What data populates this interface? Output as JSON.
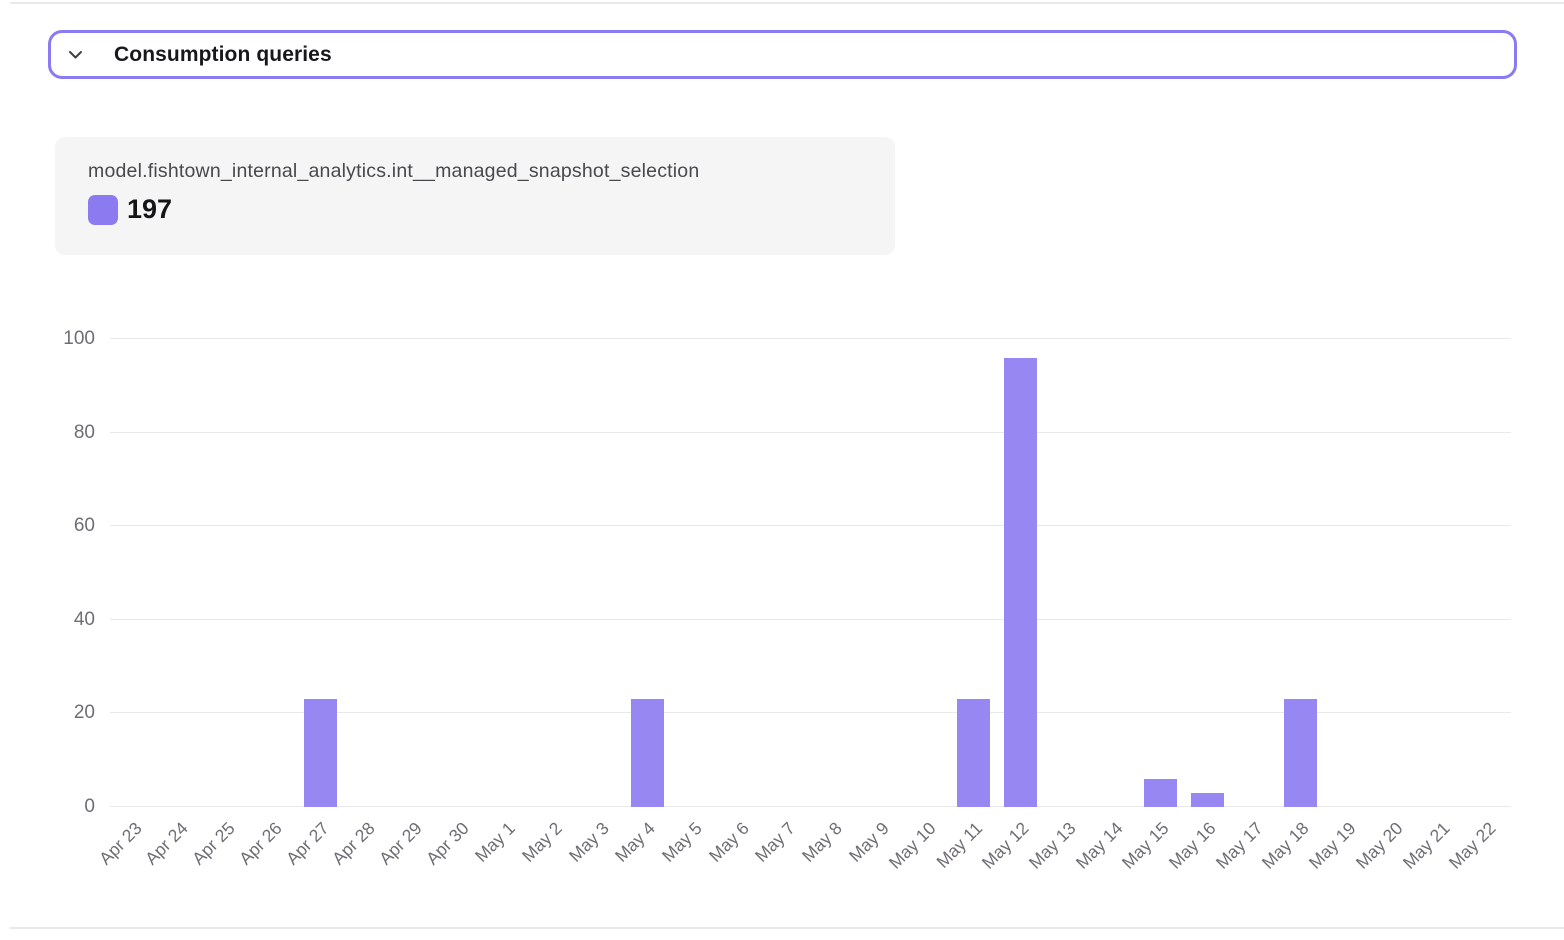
{
  "header": {
    "title": "Consumption queries"
  },
  "tooltip": {
    "series_label": "model.fishtown_internal_analytics.int__managed_snapshot_selection",
    "total_value": "197"
  },
  "chart_data": {
    "type": "bar",
    "title": "",
    "xlabel": "",
    "ylabel": "",
    "categories": [
      "Apr 23",
      "Apr 24",
      "Apr 25",
      "Apr 26",
      "Apr 27",
      "Apr 28",
      "Apr 29",
      "Apr 30",
      "May 1",
      "May 2",
      "May 3",
      "May 4",
      "May 5",
      "May 6",
      "May 7",
      "May 8",
      "May 9",
      "May 10",
      "May 11",
      "May 12",
      "May 13",
      "May 14",
      "May 15",
      "May 16",
      "May 17",
      "May 18",
      "May 19",
      "May 20",
      "May 21",
      "May 22"
    ],
    "values": [
      0,
      0,
      0,
      0,
      23,
      0,
      0,
      0,
      0,
      0,
      0,
      23,
      0,
      0,
      0,
      0,
      0,
      0,
      23,
      96,
      0,
      0,
      6,
      3,
      0,
      23,
      0,
      0,
      0,
      0
    ],
    "series_total": 197,
    "yticks": [
      0,
      20,
      40,
      60,
      80,
      100
    ],
    "ylim": [
      0,
      100
    ],
    "grid": true,
    "legend_position": "top-left-card"
  },
  "colors": {
    "accent_border": "#8b7bf1",
    "bar": "#9787f3",
    "legend_swatch": "#8c7af0",
    "grid_line": "#e9e8ea",
    "axis_text": "#6f6d73",
    "card_bg": "#f6f5f6",
    "divider": "#e9e9ea",
    "text_primary": "#18181b",
    "text_secondary": "#48484d"
  }
}
